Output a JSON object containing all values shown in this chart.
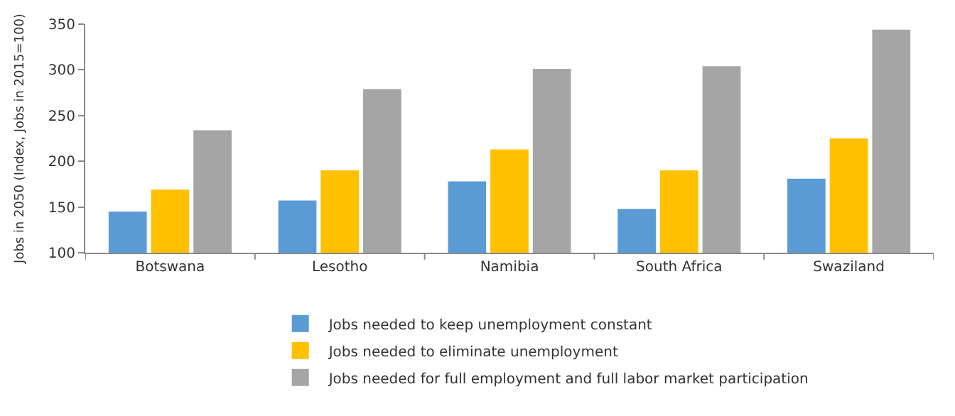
{
  "chart_data": {
    "type": "bar",
    "ylabel": "Jobs in 2050 (Index, Jobs in 2015=100)",
    "categories": [
      "Botswana",
      "Lesotho",
      "Namibia",
      "South Africa",
      "Swaziland"
    ],
    "series": [
      {
        "name": "Jobs needed to keep unemployment constant",
        "color": "#5b9bd5",
        "values": [
          145,
          157,
          178,
          148,
          181
        ]
      },
      {
        "name": "Jobs needed to eliminate unemployment",
        "color": "#ffc000",
        "values": [
          169,
          190,
          213,
          190,
          225
        ]
      },
      {
        "name": "Jobs needed for full employment and full labor market participation",
        "color": "#a5a5a5",
        "values": [
          234,
          279,
          301,
          304,
          344
        ]
      }
    ],
    "ylim": [
      100,
      350
    ],
    "yticks": [
      100,
      150,
      200,
      250,
      300,
      350
    ],
    "grid": false,
    "legend": "bottom"
  }
}
